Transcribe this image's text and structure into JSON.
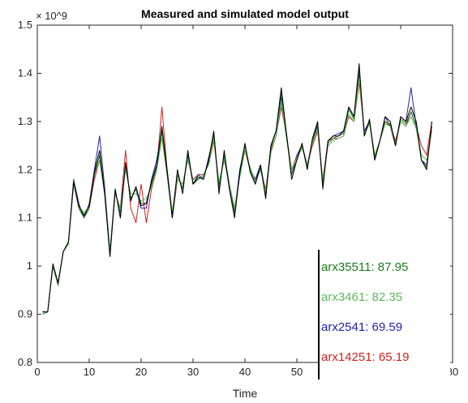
{
  "chart_data": {
    "type": "line",
    "title": "Measured and simulated model output",
    "xlabel": "Time",
    "ylabel": "",
    "y_multiplier": "× 10^9",
    "xlim": [
      0,
      80
    ],
    "ylim": [
      0.8,
      1.5
    ],
    "x_ticks": [
      0,
      10,
      20,
      30,
      40,
      50,
      60,
      70,
      80
    ],
    "y_ticks": [
      0.8,
      0.9,
      1.0,
      1.1,
      1.2,
      1.3,
      1.4,
      1.5
    ],
    "x_tick_labels": [
      "0",
      "10",
      "20",
      "30",
      "40",
      "50",
      "60",
      "70",
      "80"
    ],
    "y_tick_labels": [
      "0.8",
      "0.9",
      "1",
      "1.1",
      "1.2",
      "1.3",
      "1.4",
      "1.5"
    ],
    "grid": false,
    "legend_position": "bottom-right",
    "x": [
      1,
      2,
      3,
      4,
      5,
      6,
      7,
      8,
      9,
      10,
      11,
      12,
      13,
      14,
      15,
      16,
      17,
      18,
      19,
      20,
      21,
      22,
      23,
      24,
      25,
      26,
      27,
      28,
      29,
      30,
      31,
      32,
      33,
      34,
      35,
      36,
      37,
      38,
      39,
      40,
      41,
      42,
      43,
      44,
      45,
      46,
      47,
      48,
      49,
      50,
      51,
      52,
      53,
      54,
      55,
      56,
      57,
      58,
      59,
      60,
      61,
      62,
      63,
      64,
      65,
      66,
      67,
      68,
      69,
      70,
      71,
      72,
      73,
      74,
      75,
      76
    ],
    "series": [
      {
        "name": "Measured",
        "color": "#000000",
        "values": [
          0.905,
          0.905,
          1.005,
          0.965,
          1.03,
          1.05,
          1.175,
          1.125,
          1.105,
          1.125,
          1.195,
          1.24,
          1.15,
          1.02,
          1.16,
          1.1,
          1.215,
          1.135,
          1.165,
          1.125,
          1.13,
          1.175,
          1.21,
          1.29,
          1.2,
          1.1,
          1.2,
          1.15,
          1.24,
          1.17,
          1.185,
          1.18,
          1.22,
          1.28,
          1.15,
          1.24,
          1.16,
          1.1,
          1.195,
          1.255,
          1.195,
          1.17,
          1.21,
          1.14,
          1.25,
          1.28,
          1.37,
          1.275,
          1.18,
          1.22,
          1.255,
          1.2,
          1.265,
          1.3,
          1.16,
          1.26,
          1.27,
          1.27,
          1.28,
          1.33,
          1.31,
          1.42,
          1.27,
          1.305,
          1.22,
          1.26,
          1.31,
          1.3,
          1.25,
          1.31,
          1.3,
          1.33,
          1.3,
          1.22,
          1.2,
          1.3
        ]
      },
      {
        "name": "arx35511: 87.95",
        "color": "#1b7a1b",
        "values": [
          0.9,
          0.905,
          1.0,
          0.96,
          1.03,
          1.05,
          1.18,
          1.12,
          1.1,
          1.12,
          1.19,
          1.23,
          1.145,
          1.02,
          1.155,
          1.11,
          1.21,
          1.14,
          1.16,
          1.13,
          1.13,
          1.17,
          1.205,
          1.28,
          1.19,
          1.1,
          1.19,
          1.16,
          1.235,
          1.17,
          1.18,
          1.185,
          1.215,
          1.275,
          1.16,
          1.23,
          1.16,
          1.11,
          1.19,
          1.25,
          1.2,
          1.17,
          1.205,
          1.145,
          1.245,
          1.28,
          1.36,
          1.27,
          1.19,
          1.22,
          1.25,
          1.205,
          1.26,
          1.295,
          1.17,
          1.255,
          1.265,
          1.27,
          1.275,
          1.325,
          1.305,
          1.41,
          1.27,
          1.3,
          1.225,
          1.26,
          1.3,
          1.295,
          1.25,
          1.305,
          1.295,
          1.32,
          1.29,
          1.22,
          1.205,
          1.29
        ]
      },
      {
        "name": "arx3461: 82.35",
        "color": "#5cb85c",
        "values": [
          0.905,
          0.905,
          1.0,
          0.965,
          1.03,
          1.045,
          1.17,
          1.125,
          1.11,
          1.125,
          1.19,
          1.22,
          1.15,
          1.03,
          1.15,
          1.12,
          1.2,
          1.15,
          1.15,
          1.135,
          1.14,
          1.165,
          1.2,
          1.265,
          1.19,
          1.115,
          1.18,
          1.17,
          1.22,
          1.18,
          1.18,
          1.19,
          1.21,
          1.265,
          1.175,
          1.22,
          1.17,
          1.12,
          1.185,
          1.24,
          1.205,
          1.175,
          1.2,
          1.155,
          1.235,
          1.27,
          1.34,
          1.265,
          1.2,
          1.225,
          1.245,
          1.21,
          1.255,
          1.285,
          1.18,
          1.25,
          1.26,
          1.265,
          1.27,
          1.315,
          1.3,
          1.39,
          1.275,
          1.295,
          1.23,
          1.26,
          1.295,
          1.29,
          1.255,
          1.3,
          1.29,
          1.31,
          1.285,
          1.23,
          1.22,
          1.28
        ]
      },
      {
        "name": "arx2541: 69.59",
        "color": "#2020b0",
        "values": [
          0.905,
          0.905,
          1.0,
          0.965,
          1.03,
          1.05,
          1.18,
          1.13,
          1.1,
          1.13,
          1.2,
          1.27,
          1.16,
          1.03,
          1.16,
          1.1,
          1.21,
          1.14,
          1.16,
          1.12,
          1.12,
          1.18,
          1.22,
          1.28,
          1.2,
          1.11,
          1.19,
          1.16,
          1.23,
          1.17,
          1.19,
          1.18,
          1.225,
          1.27,
          1.16,
          1.23,
          1.17,
          1.11,
          1.2,
          1.25,
          1.2,
          1.18,
          1.21,
          1.15,
          1.25,
          1.28,
          1.35,
          1.275,
          1.19,
          1.23,
          1.25,
          1.21,
          1.26,
          1.29,
          1.17,
          1.26,
          1.27,
          1.275,
          1.28,
          1.33,
          1.31,
          1.4,
          1.28,
          1.3,
          1.22,
          1.26,
          1.31,
          1.29,
          1.25,
          1.31,
          1.3,
          1.37,
          1.29,
          1.22,
          1.21,
          1.29
        ]
      },
      {
        "name": "arx14251: 65.19",
        "color": "#d62020",
        "values": [
          0.905,
          0.905,
          1.0,
          0.965,
          1.03,
          1.05,
          1.17,
          1.12,
          1.1,
          1.12,
          1.18,
          1.22,
          1.15,
          1.03,
          1.15,
          1.12,
          1.24,
          1.12,
          1.09,
          1.17,
          1.09,
          1.16,
          1.2,
          1.33,
          1.2,
          1.1,
          1.18,
          1.17,
          1.22,
          1.18,
          1.19,
          1.19,
          1.21,
          1.26,
          1.17,
          1.22,
          1.17,
          1.12,
          1.19,
          1.24,
          1.2,
          1.18,
          1.2,
          1.16,
          1.24,
          1.27,
          1.33,
          1.27,
          1.2,
          1.23,
          1.25,
          1.21,
          1.25,
          1.28,
          1.18,
          1.26,
          1.265,
          1.265,
          1.27,
          1.31,
          1.3,
          1.38,
          1.28,
          1.3,
          1.23,
          1.26,
          1.3,
          1.29,
          1.26,
          1.3,
          1.29,
          1.32,
          1.29,
          1.25,
          1.23,
          1.3
        ]
      }
    ]
  }
}
